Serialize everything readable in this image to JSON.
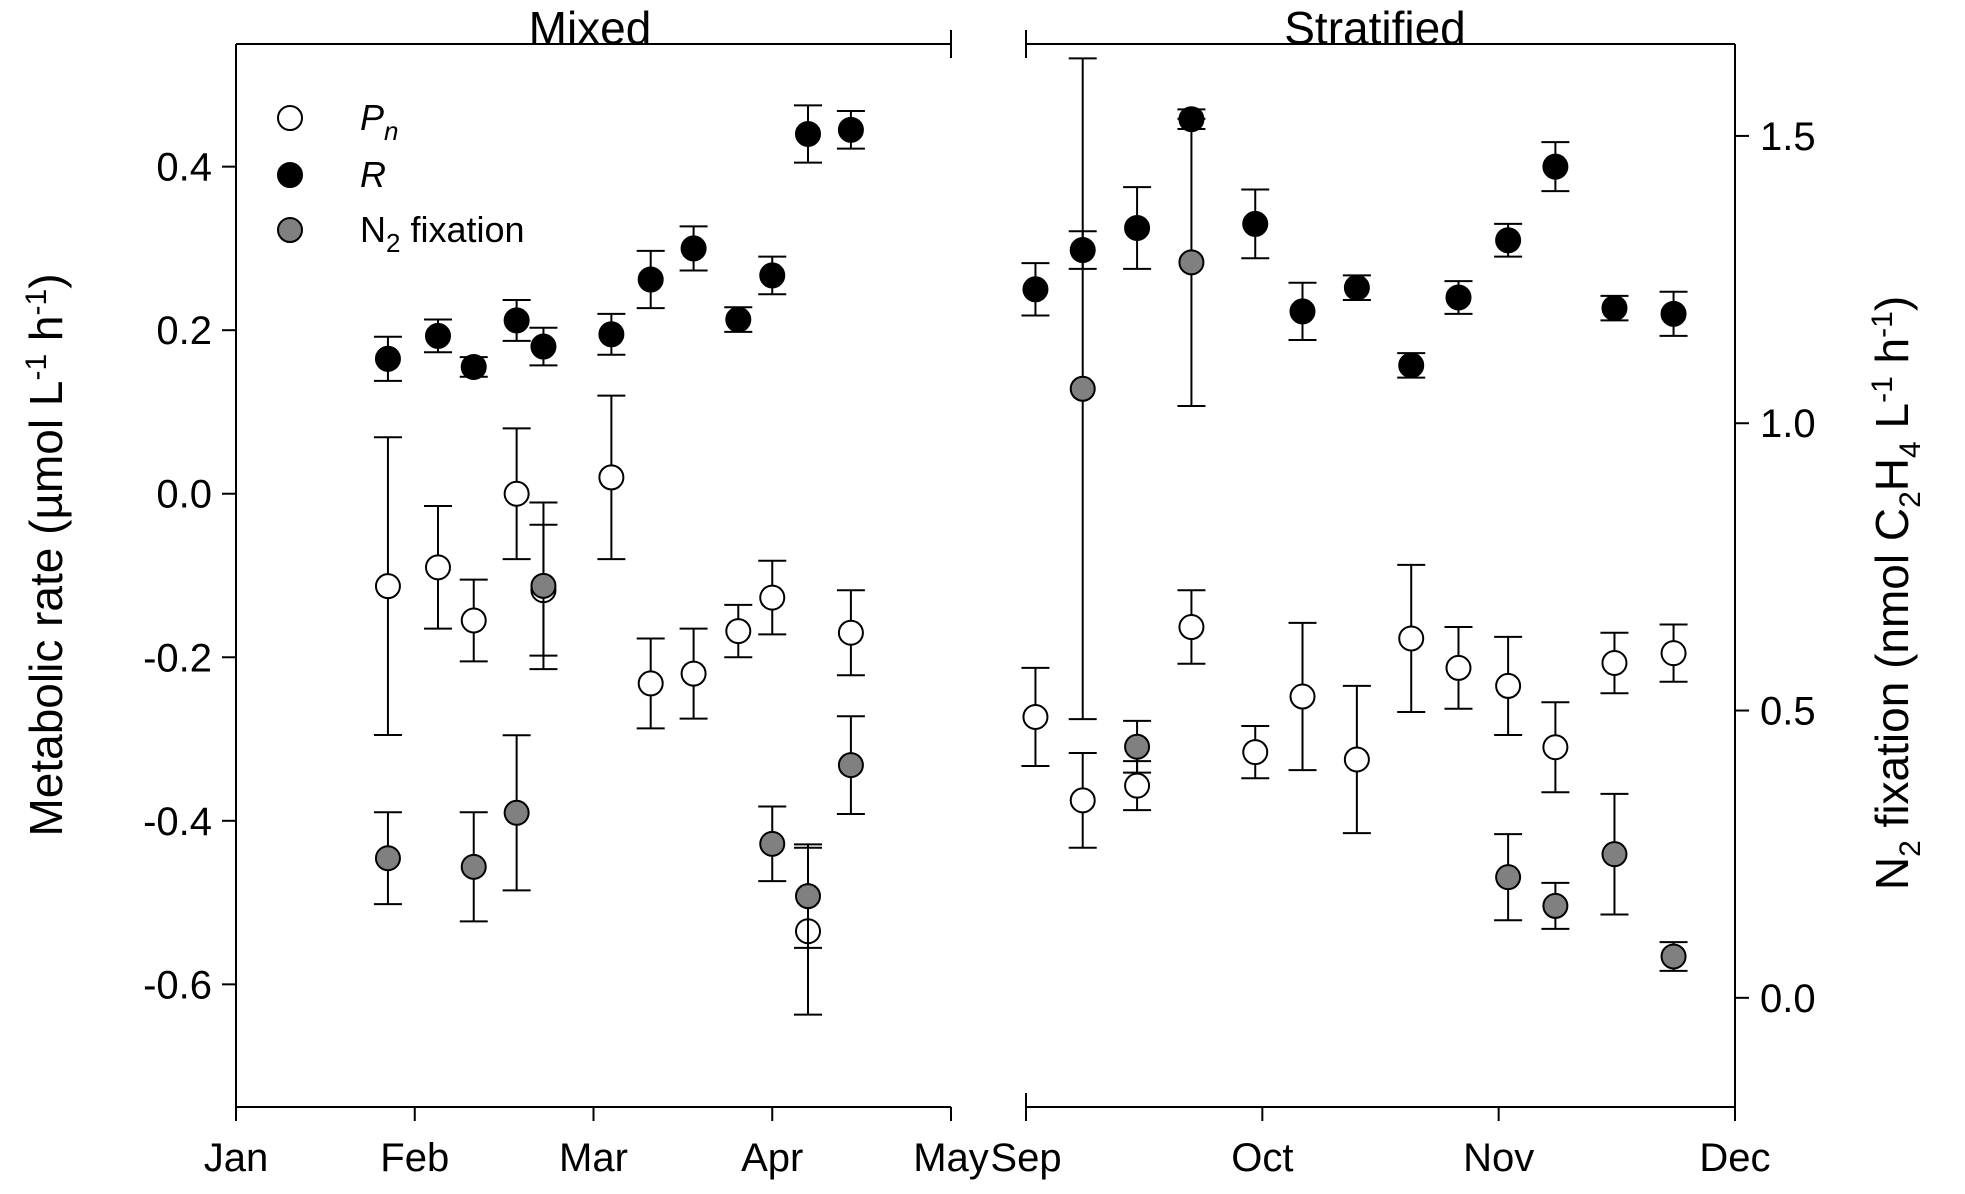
{
  "chart_data": {
    "type": "scatter",
    "panels": [
      {
        "name": "mixed",
        "title": "Mixed",
        "x_ticks": [
          "Jan",
          "Feb",
          "Mar",
          "Apr",
          "May"
        ],
        "xlim": [
          0,
          4
        ]
      },
      {
        "name": "stratified",
        "title": "Stratified",
        "x_ticks": [
          "Sep",
          "Oct",
          "Nov",
          "Dec"
        ],
        "xlim": [
          0,
          3
        ]
      }
    ],
    "left_axis": {
      "label_parts": [
        "Metabolic rate (µmol  L",
        "-1",
        " h",
        "-1",
        ")"
      ],
      "ylim": [
        -0.75,
        0.55
      ],
      "ticks": [
        0.4,
        0.2,
        0.0,
        -0.2,
        -0.4,
        -0.6
      ],
      "tick_labels": [
        "0.4",
        "0.2",
        "0.0",
        "-0.2",
        "-0.4",
        "-0.6"
      ]
    },
    "right_axis": {
      "label_parts": [
        "N",
        "2",
        " fixation (nmol C",
        "2",
        "H",
        "4",
        " L",
        "-1",
        " h",
        "-1",
        ")"
      ],
      "ylim": [
        -0.19,
        1.66
      ],
      "ticks": [
        1.5,
        1.0,
        0.5,
        0.0
      ],
      "tick_labels": [
        "1.5",
        "1.0",
        "0.5",
        "0.0"
      ]
    },
    "legend": {
      "position": "top-left",
      "entries": [
        {
          "symbol": "open",
          "label_main": "P",
          "label_sub": "n"
        },
        {
          "symbol": "black",
          "label_main": "R",
          "label_sub": ""
        },
        {
          "symbol": "grey",
          "label_main": "N",
          "label_sub": "2",
          "label_after": " fixation"
        }
      ]
    },
    "colors": {
      "open": "#ffffff",
      "black": "#000000",
      "grey": "#808080",
      "stroke": "#000000"
    },
    "series": [
      {
        "name": "Pn",
        "symbol": "open",
        "axis": "left",
        "points": [
          {
            "panel": "mixed",
            "x": 0.85,
            "y": -0.113,
            "err": 0.182
          },
          {
            "panel": "mixed",
            "x": 1.13,
            "y": -0.09,
            "err": 0.075
          },
          {
            "panel": "mixed",
            "x": 1.33,
            "y": -0.155,
            "err": 0.05
          },
          {
            "panel": "mixed",
            "x": 1.57,
            "y": 0.0,
            "err": 0.08
          },
          {
            "panel": "mixed",
            "x": 1.72,
            "y": -0.118,
            "err": 0.08
          },
          {
            "panel": "mixed",
            "x": 2.1,
            "y": 0.02,
            "err": 0.1
          },
          {
            "panel": "mixed",
            "x": 2.32,
            "y": -0.232,
            "err": 0.055
          },
          {
            "panel": "mixed",
            "x": 2.56,
            "y": -0.22,
            "err": 0.055
          },
          {
            "panel": "mixed",
            "x": 2.81,
            "y": -0.168,
            "err": 0.032
          },
          {
            "panel": "mixed",
            "x": 3.0,
            "y": -0.127,
            "err": 0.045
          },
          {
            "panel": "mixed",
            "x": 3.2,
            "y": -0.535,
            "err": 0.102
          },
          {
            "panel": "mixed",
            "x": 3.44,
            "y": -0.17,
            "err": 0.052
          },
          {
            "panel": "stratified",
            "x": 0.04,
            "y": -0.273,
            "err": 0.06
          },
          {
            "panel": "stratified",
            "x": 0.24,
            "y": -0.375,
            "err": 0.058
          },
          {
            "panel": "stratified",
            "x": 0.47,
            "y": -0.357,
            "err": 0.03
          },
          {
            "panel": "stratified",
            "x": 0.7,
            "y": -0.163,
            "err": 0.045
          },
          {
            "panel": "stratified",
            "x": 0.97,
            "y": -0.316,
            "err": 0.032
          },
          {
            "panel": "stratified",
            "x": 1.17,
            "y": -0.248,
            "err": 0.09
          },
          {
            "panel": "stratified",
            "x": 1.4,
            "y": -0.325,
            "err": 0.09
          },
          {
            "panel": "stratified",
            "x": 1.63,
            "y": -0.177,
            "err": 0.09
          },
          {
            "panel": "stratified",
            "x": 1.83,
            "y": -0.213,
            "err": 0.05
          },
          {
            "panel": "stratified",
            "x": 2.04,
            "y": -0.235,
            "err": 0.06
          },
          {
            "panel": "stratified",
            "x": 2.24,
            "y": -0.31,
            "err": 0.055
          },
          {
            "panel": "stratified",
            "x": 2.49,
            "y": -0.207,
            "err": 0.037
          },
          {
            "panel": "stratified",
            "x": 2.74,
            "y": -0.195,
            "err": 0.035
          }
        ]
      },
      {
        "name": "R",
        "symbol": "black",
        "axis": "left",
        "points": [
          {
            "panel": "mixed",
            "x": 0.85,
            "y": 0.165,
            "err": 0.027
          },
          {
            "panel": "mixed",
            "x": 1.13,
            "y": 0.193,
            "err": 0.02
          },
          {
            "panel": "mixed",
            "x": 1.33,
            "y": 0.155,
            "err": 0.012
          },
          {
            "panel": "mixed",
            "x": 1.57,
            "y": 0.212,
            "err": 0.025
          },
          {
            "panel": "mixed",
            "x": 1.72,
            "y": 0.18,
            "err": 0.023
          },
          {
            "panel": "mixed",
            "x": 2.1,
            "y": 0.195,
            "err": 0.025
          },
          {
            "panel": "mixed",
            "x": 2.32,
            "y": 0.262,
            "err": 0.035
          },
          {
            "panel": "mixed",
            "x": 2.56,
            "y": 0.3,
            "err": 0.027
          },
          {
            "panel": "mixed",
            "x": 2.81,
            "y": 0.213,
            "err": 0.015
          },
          {
            "panel": "mixed",
            "x": 3.0,
            "y": 0.267,
            "err": 0.023
          },
          {
            "panel": "mixed",
            "x": 3.2,
            "y": 0.44,
            "err": 0.035
          },
          {
            "panel": "mixed",
            "x": 3.44,
            "y": 0.445,
            "err": 0.023
          },
          {
            "panel": "stratified",
            "x": 0.04,
            "y": 0.25,
            "err": 0.032
          },
          {
            "panel": "stratified",
            "x": 0.24,
            "y": 0.298,
            "err": 0.023
          },
          {
            "panel": "stratified",
            "x": 0.47,
            "y": 0.325,
            "err": 0.05
          },
          {
            "panel": "stratified",
            "x": 0.7,
            "y": 0.458,
            "err": 0.012
          },
          {
            "panel": "stratified",
            "x": 0.97,
            "y": 0.33,
            "err": 0.042
          },
          {
            "panel": "stratified",
            "x": 1.17,
            "y": 0.223,
            "err": 0.035
          },
          {
            "panel": "stratified",
            "x": 1.4,
            "y": 0.252,
            "err": 0.015
          },
          {
            "panel": "stratified",
            "x": 1.63,
            "y": 0.157,
            "err": 0.015
          },
          {
            "panel": "stratified",
            "x": 1.83,
            "y": 0.24,
            "err": 0.02
          },
          {
            "panel": "stratified",
            "x": 2.04,
            "y": 0.31,
            "err": 0.02
          },
          {
            "panel": "stratified",
            "x": 2.24,
            "y": 0.4,
            "err": 0.03
          },
          {
            "panel": "stratified",
            "x": 2.49,
            "y": 0.227,
            "err": 0.015
          },
          {
            "panel": "stratified",
            "x": 2.74,
            "y": 0.22,
            "err": 0.027
          }
        ]
      },
      {
        "name": "N2 fixation",
        "symbol": "grey",
        "axis": "right",
        "points": [
          {
            "panel": "mixed",
            "x": 0.85,
            "y": 0.243,
            "err": 0.08
          },
          {
            "panel": "mixed",
            "x": 1.33,
            "y": 0.228,
            "err": 0.095
          },
          {
            "panel": "mixed",
            "x": 1.57,
            "y": 0.322,
            "err": 0.135
          },
          {
            "panel": "mixed",
            "x": 1.72,
            "y": 0.717,
            "err": 0.145
          },
          {
            "panel": "mixed",
            "x": 3.0,
            "y": 0.268,
            "err": 0.065
          },
          {
            "panel": "mixed",
            "x": 3.2,
            "y": 0.177,
            "err": 0.09
          },
          {
            "panel": "mixed",
            "x": 3.44,
            "y": 0.405,
            "err": 0.085
          },
          {
            "panel": "stratified",
            "x": 0.24,
            "y": 1.06,
            "err": 0.575
          },
          {
            "panel": "stratified",
            "x": 0.47,
            "y": 0.437,
            "err": 0.045
          },
          {
            "panel": "stratified",
            "x": 0.7,
            "y": 1.28,
            "err": 0.25
          },
          {
            "panel": "stratified",
            "x": 2.04,
            "y": 0.21,
            "err": 0.075
          },
          {
            "panel": "stratified",
            "x": 2.24,
            "y": 0.16,
            "err": 0.04
          },
          {
            "panel": "stratified",
            "x": 2.49,
            "y": 0.25,
            "err": 0.105
          },
          {
            "panel": "stratified",
            "x": 2.74,
            "y": 0.072,
            "err": 0.025
          }
        ]
      }
    ]
  }
}
